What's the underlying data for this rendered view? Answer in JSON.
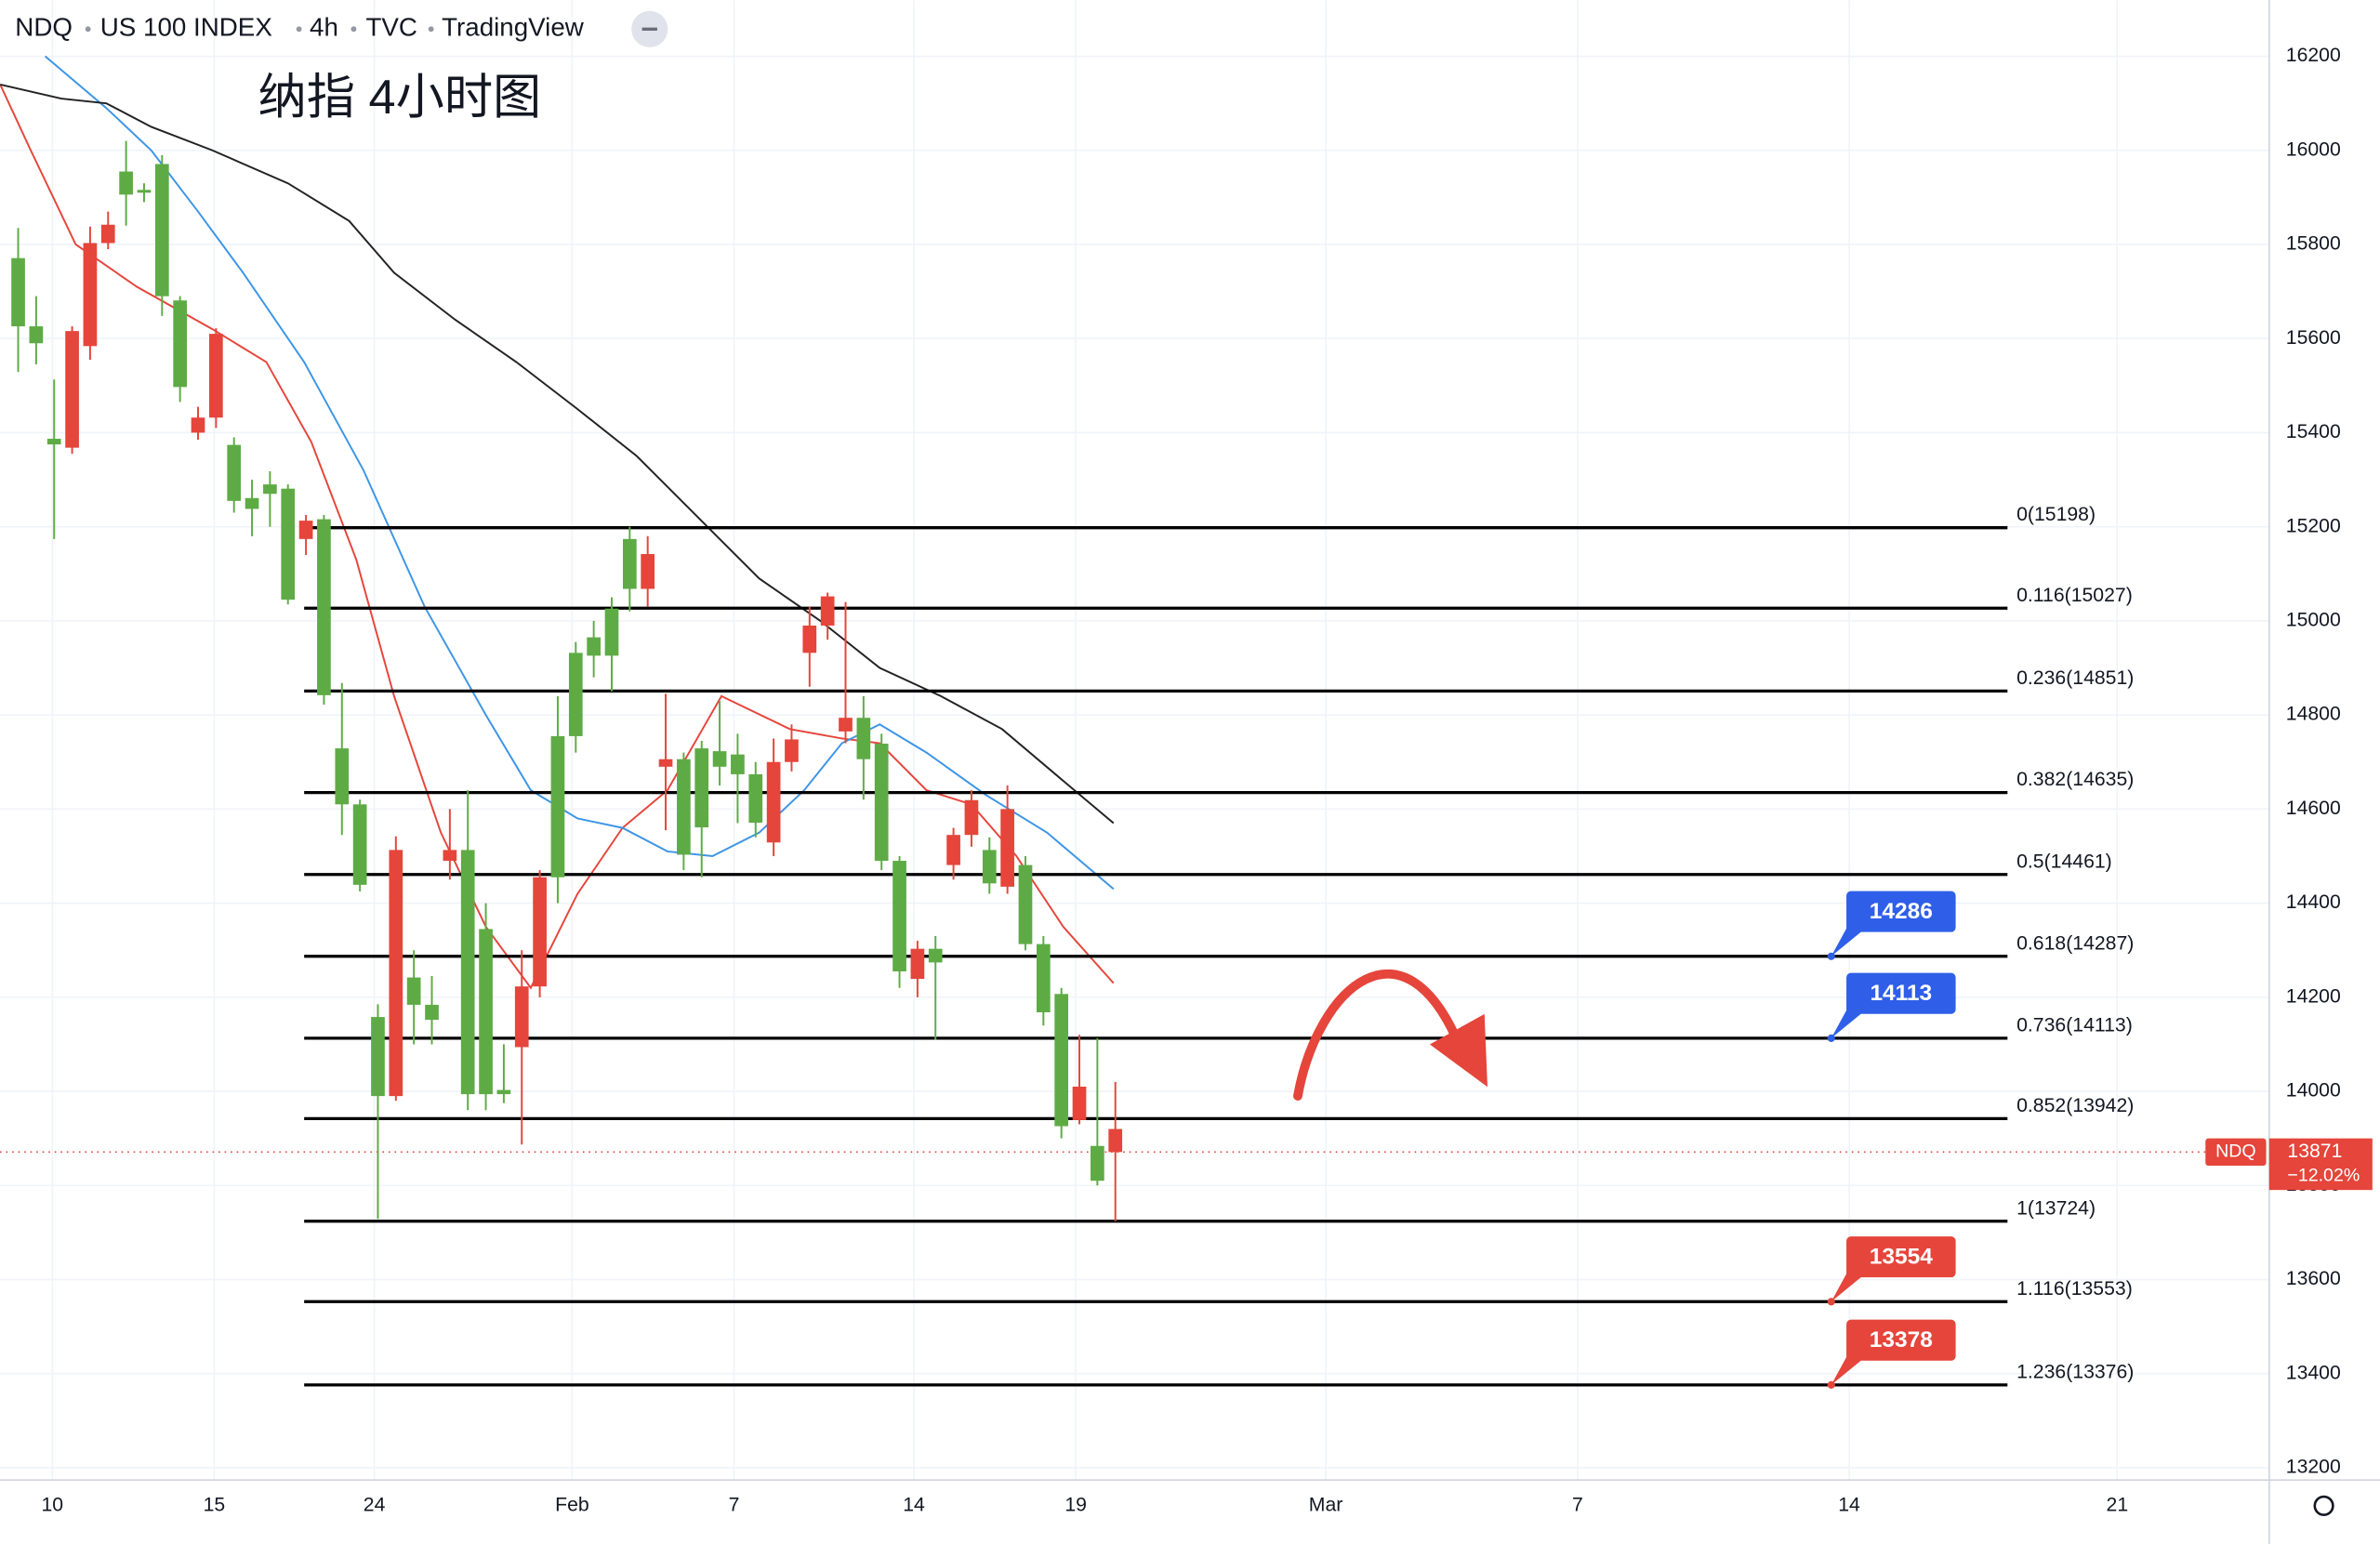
{
  "chart_data": {
    "type": "candlestick",
    "title": "纳指 4小时图",
    "header": {
      "symbol": "NDQ",
      "name": "US 100 INDEX",
      "interval": "4h",
      "source": "TVC",
      "brand": "TradingView"
    },
    "up_color": "#5eab46",
    "down_color": "#e5453b",
    "open": [
      15626,
      15590,
      15375,
      15616,
      15803,
      15842,
      15906,
      15910,
      15690,
      15497,
      15432,
      15610,
      15255,
      15238,
      15270,
      15045,
      15213,
      14842,
      14610,
      14439,
      13990,
      14513,
      14184,
      14152,
      14513,
      13994,
      13994,
      13994,
      14223,
      14455,
      14455,
      14755,
      14926,
      14926,
      15068,
      15142,
      14706,
      14503,
      14561,
      14690,
      14674,
      14571,
      14700,
      14748,
      14990,
      15052,
      14794,
      14706,
      14490,
      14255,
      14303,
      14274,
      14545,
      14619,
      14442,
      14600,
      14313,
      14168,
      13926,
      14010,
      13810,
      13920
    ],
    "high": [
      15835,
      15690,
      15513,
      15626,
      15838,
      15870,
      16020,
      15930,
      15990,
      15690,
      15455,
      15622,
      15390,
      15300,
      15318,
      15290,
      15225,
      15225,
      14868,
      14620,
      14185,
      14542,
      14300,
      14245,
      14600,
      14640,
      14400,
      14100,
      14300,
      14470,
      14840,
      14955,
      15000,
      15050,
      15200,
      15180,
      14845,
      14720,
      14745,
      14830,
      14760,
      14700,
      14750,
      14780,
      15030,
      15060,
      15040,
      14840,
      14760,
      14500,
      14320,
      14330,
      14560,
      14640,
      14540,
      14650,
      14500,
      14330,
      14220,
      14120,
      14113,
      14020
    ],
    "low": [
      15529,
      15545,
      15174,
      15355,
      15555,
      15790,
      15840,
      15890,
      15648,
      15465,
      15385,
      15410,
      15230,
      15180,
      15200,
      15035,
      15140,
      14822,
      14545,
      14425,
      13729,
      13980,
      14100,
      14100,
      14450,
      13960,
      13960,
      13975,
      13887,
      14200,
      14400,
      14720,
      14880,
      14850,
      15020,
      15030,
      14555,
      14470,
      14455,
      14650,
      14570,
      14540,
      14500,
      14680,
      14860,
      14960,
      14740,
      14620,
      14470,
      14220,
      14200,
      14110,
      14450,
      14520,
      14420,
      14420,
      14300,
      14140,
      13900,
      13930,
      13800,
      13724
    ],
    "close": [
      15771,
      15626,
      15387,
      15368,
      15584,
      15803,
      15955,
      15916,
      15971,
      15681,
      15400,
      15432,
      15374,
      15261,
      15290,
      15281,
      15174,
      15216,
      14729,
      14610,
      14158,
      13990,
      14242,
      14184,
      14490,
      14513,
      14345,
      14003,
      14094,
      14223,
      14755,
      14932,
      14965,
      15026,
      15174,
      15068,
      14690,
      14706,
      14729,
      14723,
      14716,
      14674,
      14529,
      14700,
      14932,
      14990,
      14765,
      14794,
      14739,
      14490,
      14239,
      14303,
      14481,
      14545,
      14513,
      14435,
      14481,
      14313,
      14207,
      13939,
      13884,
      13871
    ],
    "ma": [
      {
        "color": "#e5453b",
        "x": [
          -1.0,
          0.7,
          3.2,
          6.6,
          10.8,
          13.8,
          16.3,
          18.8,
          20.9,
          23.5,
          26.0,
          28.5,
          31.1,
          33.6,
          36.1,
          39.1,
          42.9,
          45.8,
          47.9,
          50.5,
          53.0,
          55.5,
          58.1,
          60.9
        ],
        "values": [
          16140,
          16000,
          15800,
          15710,
          15620,
          15550,
          15380,
          15130,
          14840,
          14550,
          14350,
          14220,
          14420,
          14560,
          14640,
          14840,
          14770,
          14750,
          14740,
          14640,
          14610,
          14500,
          14350,
          14230
        ]
      },
      {
        "color": "#3d95e6",
        "x": [
          1.5,
          4.9,
          7.4,
          10.0,
          12.5,
          15.9,
          19.2,
          22.6,
          26.0,
          28.5,
          31.1,
          33.6,
          36.1,
          38.6,
          41.2,
          43.7,
          45.8,
          47.9,
          50.5,
          53.8,
          57.2,
          60.9
        ],
        "values": [
          16200,
          16090,
          16000,
          15870,
          15740,
          15550,
          15320,
          15030,
          14800,
          14640,
          14580,
          14560,
          14510,
          14500,
          14550,
          14640,
          14740,
          14780,
          14720,
          14630,
          14550,
          14430
        ]
      },
      {
        "color": "#222222",
        "x": [
          -1.0,
          2.4,
          4.9,
          7.4,
          10.8,
          15.0,
          18.4,
          20.9,
          24.3,
          27.7,
          31.1,
          34.4,
          37.8,
          41.2,
          44.6,
          47.9,
          51.3,
          54.7,
          58.1,
          60.9
        ],
        "values": [
          16140,
          16110,
          16100,
          16050,
          16000,
          15930,
          15850,
          15740,
          15640,
          15550,
          15450,
          15350,
          15220,
          15090,
          15000,
          14900,
          14840,
          14770,
          14660,
          14570
        ]
      }
    ],
    "fib_range": [
      15.9,
      110.6
    ],
    "fib_levels": [
      {
        "label": "0(15198)",
        "value": 15198
      },
      {
        "label": "0.116(15027)",
        "value": 15027
      },
      {
        "label": "0.236(14851)",
        "value": 14851
      },
      {
        "label": "0.382(14635)",
        "value": 14635
      },
      {
        "label": "0.5(14461)",
        "value": 14461
      },
      {
        "label": "0.618(14287)",
        "value": 14287
      },
      {
        "label": "0.736(14113)",
        "value": 14113
      },
      {
        "label": "0.852(13942)",
        "value": 13942
      },
      {
        "label": "1(13724)",
        "value": 13724
      },
      {
        "label": "1.116(13553)",
        "value": 13553
      },
      {
        "label": "1.236(13376)",
        "value": 13376
      }
    ],
    "callouts": [
      {
        "value": 14286,
        "anchor": 14287,
        "x": 100.8,
        "color": "#2f5fe8"
      },
      {
        "value": 14113,
        "anchor": 14113,
        "x": 100.8,
        "color": "#2f5fe8"
      },
      {
        "value": 13554,
        "anchor": 13553,
        "x": 100.8,
        "color": "#e5453b"
      },
      {
        "value": 13378,
        "anchor": 13376,
        "x": 100.8,
        "color": "#e5453b"
      }
    ],
    "last_price": {
      "value": 13871,
      "tag": "NDQ",
      "change": "−12.02%",
      "color": "#e5453b"
    },
    "xlim": [
      -1.01,
      125.15
    ],
    "ylim": [
      13174,
      16319
    ],
    "xticks": [
      {
        "value": 1.9,
        "label": "10"
      },
      {
        "value": 10.9,
        "label": "15"
      },
      {
        "value": 19.8,
        "label": "24"
      },
      {
        "value": 30.8,
        "label": "Feb"
      },
      {
        "value": 39.8,
        "label": "7"
      },
      {
        "value": 49.8,
        "label": "14"
      },
      {
        "value": 58.8,
        "label": "19"
      },
      {
        "value": 72.7,
        "label": "Mar"
      },
      {
        "value": 86.7,
        "label": "7"
      },
      {
        "value": 101.8,
        "label": "14"
      },
      {
        "value": 116.7,
        "label": "21"
      }
    ],
    "yticks": [
      13200,
      13400,
      13600,
      13800,
      14000,
      14200,
      14400,
      14600,
      14800,
      15000,
      15200,
      15400,
      15600,
      15800,
      16000,
      16200
    ],
    "grid": true
  }
}
